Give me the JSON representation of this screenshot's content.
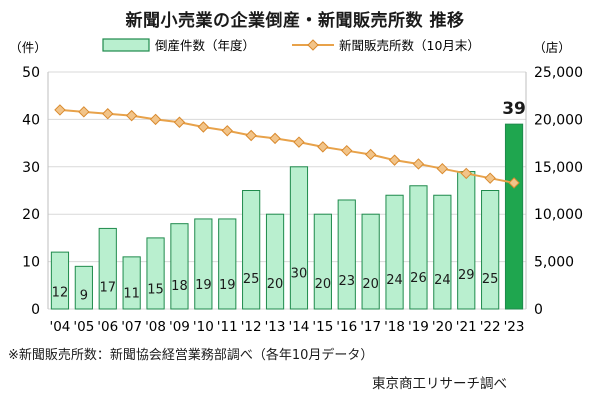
{
  "title": "新聞小売業の企業倒産・新聞販売所数 推移",
  "note": "※新聞販売所数：新聞協会経営業務部調べ（各年10月データ）",
  "source": "東京商工リサーチ調べ",
  "colors": {
    "bar_fill": "#b9efcf",
    "bar_stroke": "#1f8a4c",
    "bar_highlight": "#1fa64f",
    "line": "#e8a24a"
  },
  "chart_data": {
    "type": "bar",
    "categories": [
      "'04",
      "'05",
      "'06",
      "'07",
      "'08",
      "'09",
      "'10",
      "'11",
      "'12",
      "'13",
      "'14",
      "'15",
      "'16",
      "'17",
      "'18",
      "'19",
      "'20",
      "'21",
      "'22",
      "'23"
    ],
    "left_axis": {
      "unit": "（件）",
      "min": 0,
      "max": 50,
      "ticks": [
        "0",
        "10",
        "20",
        "30",
        "40",
        "50"
      ]
    },
    "right_axis": {
      "unit": "（店）",
      "min": 0,
      "max": 25000,
      "ticks": [
        "0",
        "5,000",
        "10,000",
        "15,000",
        "20,000",
        "25,000"
      ]
    },
    "grid": true,
    "legend_position": "top",
    "series": [
      {
        "name": "倒産件数（年度）",
        "type": "bar",
        "axis": "left",
        "values": [
          12,
          9,
          17,
          11,
          15,
          18,
          19,
          19,
          25,
          20,
          30,
          20,
          23,
          20,
          24,
          26,
          24,
          29,
          25,
          39
        ],
        "labels": [
          "12",
          "9",
          "17",
          "11",
          "15",
          "18",
          "19",
          "19",
          "25",
          "20",
          "30",
          "20",
          "23",
          "20",
          "24",
          "26",
          "24",
          "29",
          "25",
          "39"
        ],
        "highlight_last": true
      },
      {
        "name": "新聞販売所数（10月末）",
        "type": "line",
        "axis": "right",
        "values": [
          21000,
          20800,
          20600,
          20400,
          20000,
          19700,
          19200,
          18800,
          18300,
          18000,
          17600,
          17100,
          16700,
          16300,
          15700,
          15300,
          14800,
          14300,
          13800,
          13300
        ]
      }
    ]
  }
}
